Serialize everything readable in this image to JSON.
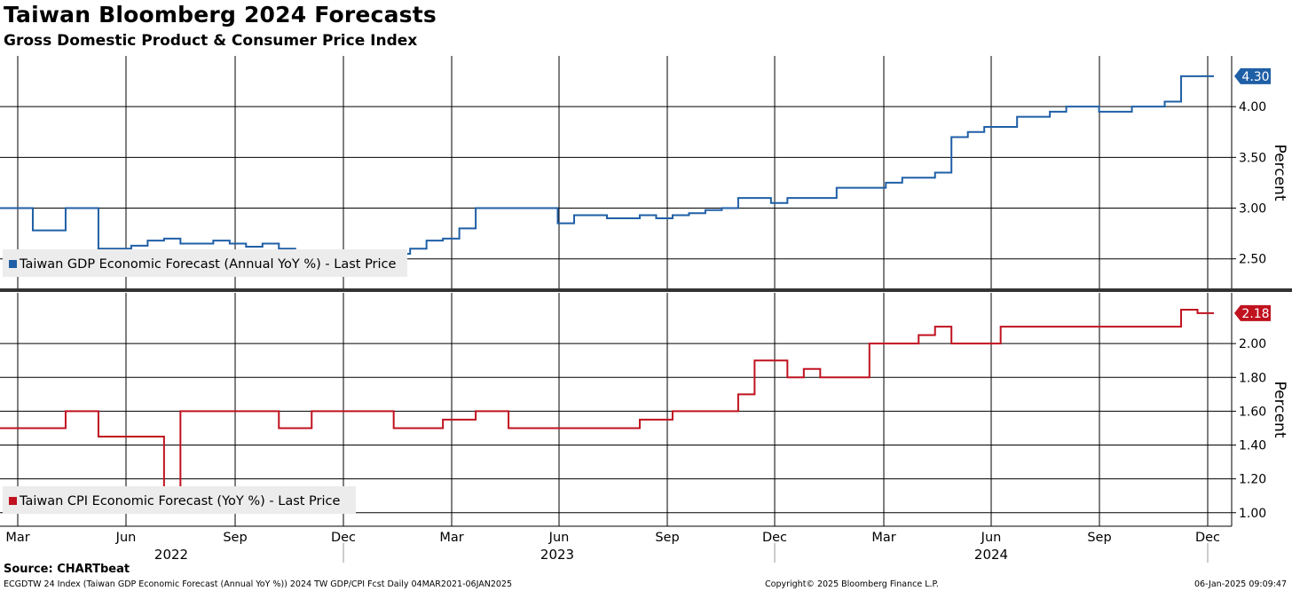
{
  "header": {
    "title": "Taiwan Bloomberg 2024 Forecasts",
    "subtitle": "Gross Domestic Product & Consumer Price Index"
  },
  "footer": {
    "source": "Source: CHARTbeat",
    "ticker_line": "ECGDTW 24 Index (Taiwan GDP Economic Forecast (Annual YoY %)) 2024 TW GDP/CPI Fcst  Daily 04MAR2021-06JAN2025",
    "copyright": "Copyright© 2025 Bloomberg Finance L.P.",
    "timestamp": "06-Jan-2025 09:09:47"
  },
  "x_axis": {
    "month_labels": [
      "Mar",
      "Jun",
      "Sep",
      "Dec",
      "Mar",
      "Jun",
      "Sep",
      "Dec",
      "Mar",
      "Jun",
      "Sep",
      "Dec"
    ],
    "year_labels": [
      "2022",
      "2023",
      "2024"
    ]
  },
  "chart_data": [
    {
      "type": "line",
      "legend": "Taiwan GDP Economic Forecast (Annual YoY %) - Last Price",
      "color": "#1f5fa6",
      "ylabel": "Percent",
      "ylim": [
        2.2,
        4.5
      ],
      "yticks": [
        "2.50",
        "3.00",
        "3.50",
        "4.00"
      ],
      "last_value_label": "4.30",
      "series": [
        {
          "values": [
            3.0,
            3.0,
            2.78,
            2.78,
            3.0,
            3.0,
            2.6,
            2.6,
            2.63,
            2.68,
            2.7,
            2.65,
            2.65,
            2.68,
            2.65,
            2.62,
            2.65,
            2.6,
            2.55,
            2.4,
            2.4,
            2.5,
            2.5,
            2.5,
            2.55,
            2.6,
            2.68,
            2.7,
            2.8,
            3.0,
            3.0,
            3.0,
            3.0,
            3.0,
            2.85,
            2.93,
            2.93,
            2.9,
            2.9,
            2.93,
            2.9,
            2.93,
            2.95,
            2.98,
            3.0,
            3.1,
            3.1,
            3.05,
            3.1,
            3.1,
            3.1,
            3.2,
            3.2,
            3.2,
            3.25,
            3.3,
            3.3,
            3.35,
            3.7,
            3.75,
            3.8,
            3.8,
            3.9,
            3.9,
            3.95,
            4.0,
            4.0,
            3.95,
            3.95,
            4.0,
            4.0,
            4.05,
            4.3,
            4.3
          ]
        }
      ]
    },
    {
      "type": "line",
      "legend": "Taiwan CPI Economic Forecast (YoY %) - Last Price",
      "color": "#c0121f",
      "ylabel": "Percent",
      "ylim": [
        0.92,
        2.3
      ],
      "yticks": [
        "1.00",
        "1.20",
        "1.40",
        "1.60",
        "1.80",
        "2.00"
      ],
      "last_value_label": "2.18",
      "series": [
        {
          "values": [
            1.5,
            1.5,
            1.5,
            1.5,
            1.6,
            1.6,
            1.45,
            1.45,
            1.45,
            1.45,
            1.15,
            1.6,
            1.6,
            1.6,
            1.6,
            1.6,
            1.6,
            1.5,
            1.5,
            1.6,
            1.6,
            1.6,
            1.6,
            1.6,
            1.5,
            1.5,
            1.5,
            1.55,
            1.55,
            1.6,
            1.6,
            1.5,
            1.5,
            1.5,
            1.5,
            1.5,
            1.5,
            1.5,
            1.5,
            1.55,
            1.55,
            1.6,
            1.6,
            1.6,
            1.6,
            1.7,
            1.9,
            1.9,
            1.8,
            1.85,
            1.8,
            1.8,
            1.8,
            2.0,
            2.0,
            2.0,
            2.05,
            2.1,
            2.0,
            2.0,
            2.0,
            2.1,
            2.1,
            2.1,
            2.1,
            2.1,
            2.1,
            2.1,
            2.1,
            2.1,
            2.1,
            2.1,
            2.2,
            2.18
          ]
        }
      ]
    }
  ]
}
